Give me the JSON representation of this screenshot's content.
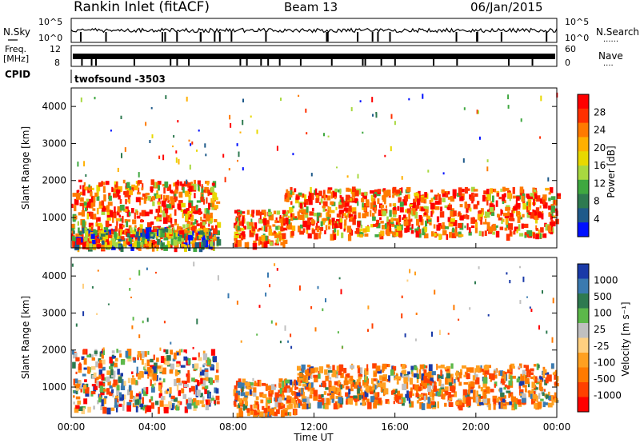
{
  "header": {
    "station": "Rankin Inlet (fitACF)",
    "beam": "Beam 13",
    "date": "06/Jan/2015"
  },
  "sky_panel": {
    "left_label": "N.Sky",
    "right_label": "N.Search",
    "right_dots": "......",
    "y_ticks_left": [
      "10^5",
      "10^0"
    ],
    "y_ticks_right": [
      "10^5",
      "10^0"
    ]
  },
  "freq_panel": {
    "left_label_1": "Freq.",
    "left_label_2": "[MHz]",
    "right_label": "Nave",
    "right_dots": "....",
    "y_ticks_left": [
      "12",
      "8"
    ],
    "y_ticks_right": [
      "60",
      "0"
    ]
  },
  "cpid": {
    "label": "CPID",
    "value": "twofsound -3503"
  },
  "power_panel": {
    "ylabel": "Slant Range [km]",
    "cbar_label": "Power [dB]",
    "cbar_ticks": [
      "28",
      "24",
      "20",
      "16",
      "12",
      "8",
      "4"
    ],
    "cbar_colors": [
      "#ff0000",
      "#ff3000",
      "#ff7a00",
      "#ffb000",
      "#e8d800",
      "#a8d840",
      "#3fa840",
      "#2e7a50",
      "#1f5a8a",
      "#0010ff"
    ]
  },
  "velocity_panel": {
    "ylabel": "Slant Range [km]",
    "cbar_label": "Velocity [m s⁻¹]",
    "cbar_ticks": [
      "1000",
      "500",
      "100",
      "25",
      "-25",
      "-100",
      "-500",
      "-1000"
    ],
    "cbar_colors": [
      "#1a3aa8",
      "#3a7ab0",
      "#2e7a50",
      "#5cb84a",
      "#c0c0c0",
      "#ffd080",
      "#ffa020",
      "#ff7a00",
      "#ff4000",
      "#ff0000"
    ]
  },
  "xaxis": {
    "label": "Time UT",
    "ticks": [
      "00:00",
      "04:00",
      "08:00",
      "12:00",
      "16:00",
      "20:00",
      "00:00"
    ]
  },
  "chart_data": [
    {
      "type": "heatmap",
      "title": "Power",
      "xlabel": "Time UT",
      "ylabel": "Slant Range [km]",
      "xlim": [
        0,
        24
      ],
      "ylim": [
        180,
        4500
      ],
      "yticks": [
        1000,
        2000,
        3000,
        4000
      ],
      "colorbar": {
        "label": "Power [dB]",
        "range": [
          0,
          30
        ]
      },
      "scatter_bands": [
        {
          "t_start": 0.0,
          "t_end": 7.2,
          "r_low": 600,
          "r_high": 2000,
          "level": "high"
        },
        {
          "t_start": 0.0,
          "t_end": 7.2,
          "r_low": 200,
          "r_high": 700,
          "level": "mixed"
        },
        {
          "t_start": 8.0,
          "t_end": 10.5,
          "r_low": 250,
          "r_high": 1200,
          "level": "high"
        },
        {
          "t_start": 10.5,
          "t_end": 24.0,
          "r_low": 500,
          "r_high": 1800,
          "level": "high"
        }
      ]
    },
    {
      "type": "heatmap",
      "title": "Velocity",
      "xlabel": "Time UT",
      "ylabel": "Slant Range [km]",
      "xlim": [
        0,
        24
      ],
      "ylim": [
        180,
        4500
      ],
      "yticks": [
        1000,
        2000,
        3000,
        4000
      ],
      "colorbar": {
        "label": "Velocity [m s⁻¹]",
        "range": [
          -1000,
          1000
        ]
      },
      "scatter_bands": [
        {
          "t_start": 0.0,
          "t_end": 7.2,
          "r_low": 400,
          "r_high": 2000,
          "level": "mixed"
        },
        {
          "t_start": 8.0,
          "t_end": 11.0,
          "r_low": 250,
          "r_high": 1200,
          "level": "negative"
        },
        {
          "t_start": 11.0,
          "t_end": 24.0,
          "r_low": 500,
          "r_high": 1600,
          "level": "negative"
        }
      ]
    }
  ]
}
